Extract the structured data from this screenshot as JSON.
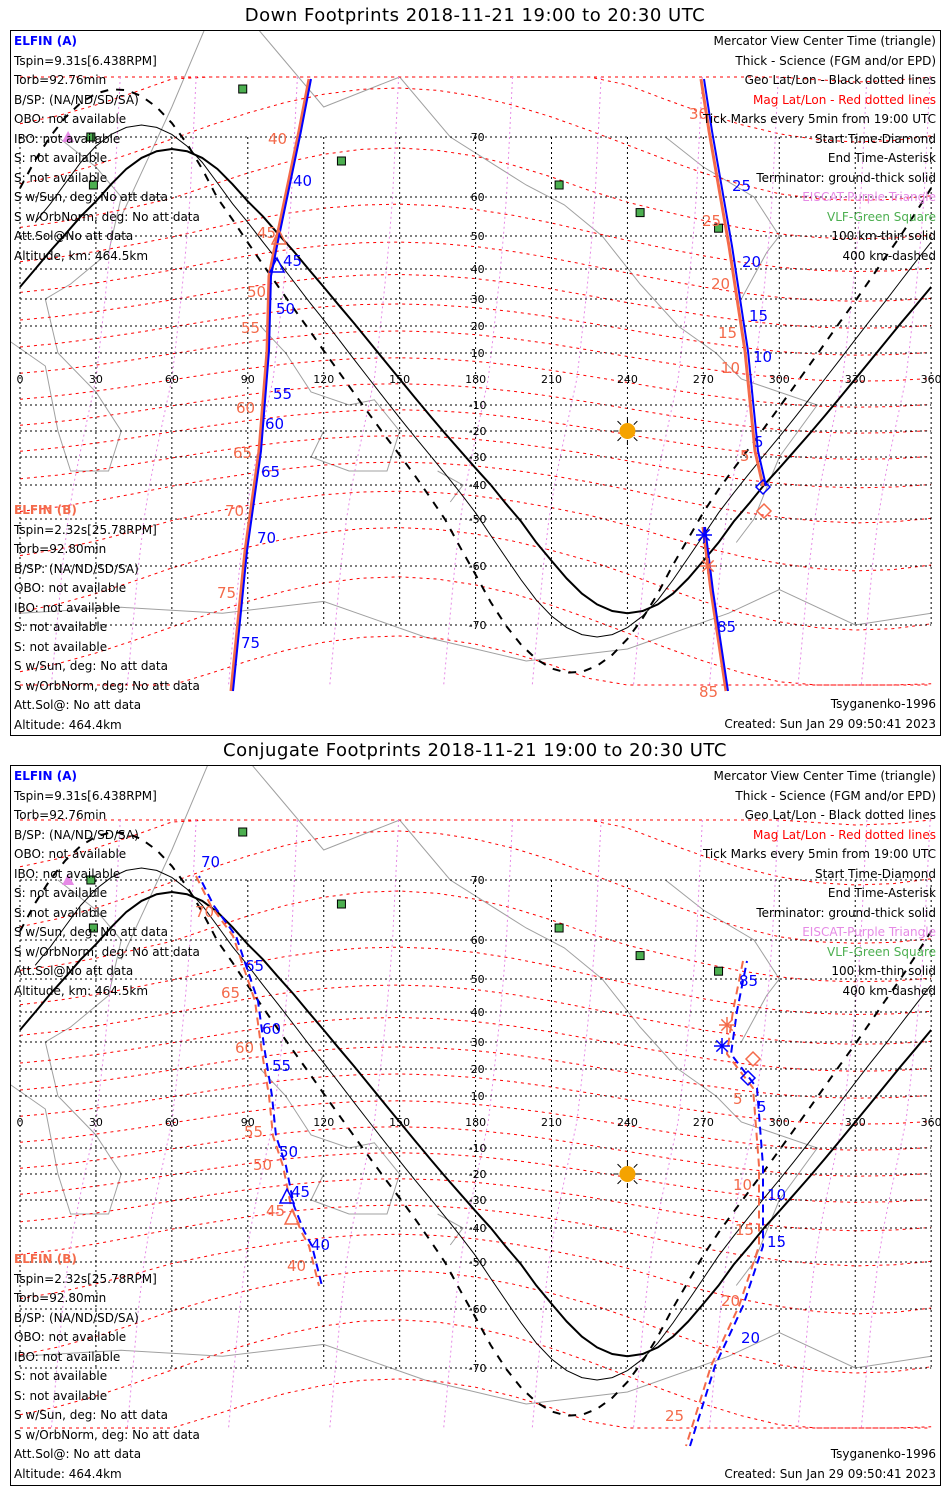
{
  "colors": {
    "sat_a": "#0000ff",
    "sat_b": "#f46a4a",
    "mag_grid": "#ff0000",
    "eiscat": "#e68ae6",
    "vlf": "#4caf50",
    "sun": "#f5a300",
    "coast": "#a0a0a0"
  },
  "axes": {
    "lon_ticks": [
      "0",
      "30",
      "60",
      "90",
      "120",
      "150",
      "180",
      "210",
      "240",
      "270",
      "300",
      "330",
      "360"
    ],
    "lat_ticks": [
      "70",
      "60",
      "50",
      "40",
      "30",
      "20",
      "10",
      "-10",
      "-20",
      "-30",
      "-40",
      "-50",
      "-60",
      "-70"
    ]
  },
  "legend": {
    "items": [
      {
        "text": "Mercator View Center Time (triangle)",
        "color": "#000000"
      },
      {
        "text": "Thick - Science (FGM and/or EPD)",
        "color": "#000000"
      },
      {
        "text": "Geo Lat/Lon - Black dotted lines",
        "color": "#000000"
      },
      {
        "text": "Mag Lat/Lon - Red dotted lines",
        "color": "#ff0000"
      },
      {
        "text": "Tick Marks every 5min from 19:00 UTC",
        "color": "#000000"
      },
      {
        "text": "Start Time-Diamond",
        "color": "#000000"
      },
      {
        "text": "End Time-Asterisk",
        "color": "#000000"
      },
      {
        "text": "Terminator: ground-thick solid",
        "color": "#000000"
      },
      {
        "text": "EISCAT-Purple Triangle",
        "color": "#e68ae6"
      },
      {
        "text": "VLF-Green Square",
        "color": "#4caf50"
      },
      {
        "text": "100 km-thin solid",
        "color": "#000000"
      },
      {
        "text": "400 km-dashed",
        "color": "#000000"
      }
    ],
    "model": "Tsyganenko-1996",
    "created": "Created: Sun Jan 29 09:50:41 2023"
  },
  "sat_a_info": {
    "name": "ELFIN (A)",
    "lines": [
      "Tspin=9.31s[6.438RPM]",
      "Torb=92.76min",
      "B/SP: (NA/ND/SD/SA)",
      "OBO: not available",
      "IBO: not available",
      "S: not available",
      "S: not available",
      "S w/Sun, deg: No att data",
      "S w/OrbNorm, deg: No att data",
      "Att.Sol@No att data",
      "Altitude, km: 464.5km"
    ]
  },
  "sat_b_info": {
    "name": "ELFIN (B)",
    "lines": [
      "Tspin=2.32s[25.78RPM]",
      "Torb=92.80min",
      "B/SP: (NA/ND/SD/SA)",
      "OBO: not available",
      "IBO: not available",
      "S: not available",
      "S: not available",
      "S w/Sun, deg: No att data",
      "S w/OrbNorm, deg: No att data",
      "Att.Sol@: No att data",
      "Altitude: 464.4km"
    ]
  },
  "panels": [
    {
      "title": "Down Footprints 2018-11-21 19:00 to 20:30 UTC",
      "track_a_labels": [
        "40",
        "45",
        "50",
        "55",
        "60",
        "65",
        "70",
        "75",
        "25",
        "20",
        "15",
        "10",
        "5",
        "85"
      ],
      "track_b_labels": [
        "40",
        "45",
        "50",
        "55",
        "60",
        "65",
        "70",
        "75",
        "30",
        "25",
        "20",
        "15",
        "10",
        "5",
        "85"
      ]
    },
    {
      "title": "Conjugate Footprints 2018-11-21 19:00 to 20:30 UTC",
      "track_a_labels": [
        "70",
        "65",
        "60",
        "55",
        "50",
        "45",
        "40",
        "85",
        "5",
        "10",
        "15",
        "20"
      ],
      "track_b_labels": [
        "70",
        "65",
        "60",
        "55",
        "50",
        "45",
        "40",
        "5",
        "10",
        "15",
        "20",
        "25"
      ]
    }
  ]
}
